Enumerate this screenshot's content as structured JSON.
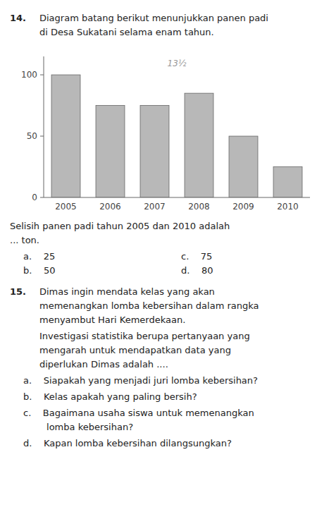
{
  "chart_data": {
    "type": "bar",
    "categories": [
      "2005",
      "2006",
      "2007",
      "2008",
      "2009",
      "2010"
    ],
    "values": [
      100,
      75,
      75,
      85,
      50,
      25
    ],
    "color": "#b8b8b8",
    "ylim": [
      0,
      115
    ],
    "yticks": [
      0,
      50,
      100
    ],
    "grid": false,
    "annotations": [
      "14.",
      "Diagram batang berikut menunjukkan panen padi",
      "di Desa Sukatani selama enam tahun.",
      "13½",
      "Selisih panen padi tahun 2005 dan 2010 adalah",
      "... ton.",
      "a.    25",
      "c.    75",
      "b.    50",
      "d.    80",
      "15.",
      "Dimas ingin mendata kelas yang akan",
      "memenangkan lomba kebersihan dalam rangka",
      "menyambut Hari Kemerdekaan.",
      "Investigasi statistika berupa pertanyaan yang",
      "mengarah untuk mendapatkan data yang",
      "diperlukan Dimas adalah ....",
      "a.    Siapakah yang menjadi juri lomba kebersihan?",
      "b.    Kelas apakah yang paling bersih?",
      "c.    Bagaimana usaha siswa untuk memenangkan",
      "        lomba kebersihan?",
      "d.    Kapan lomba kebersihan dilangsungkan?"
    ]
  }
}
